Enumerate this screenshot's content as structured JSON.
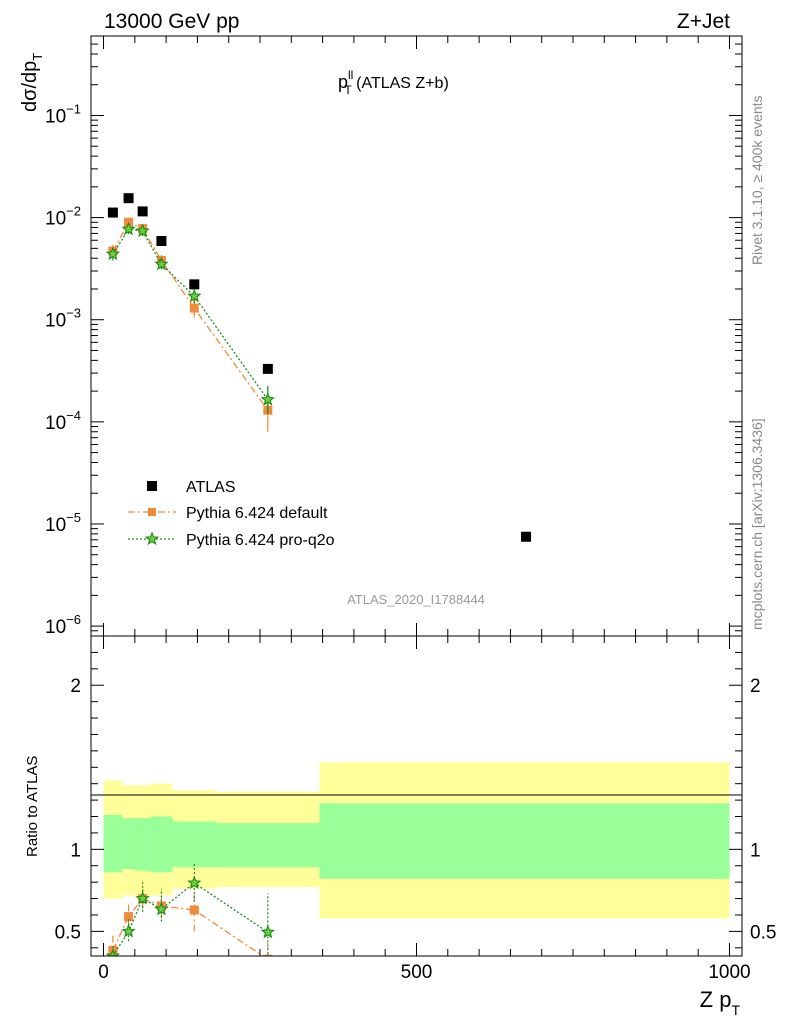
{
  "header": {
    "left": "13000 GeV pp",
    "right": "Z+Jet"
  },
  "plot_title": {
    "main": "p",
    "sup": "ll",
    "sub": "T",
    "rest": " (ATLAS Z+b)"
  },
  "side_labels": {
    "rivet": "Rivet 3.1.10, ≥ 400k events",
    "mcplots": "mcplots.cern.ch [arXiv:1306.3436]"
  },
  "reference_id": "ATLAS_2020_I1788444",
  "colors": {
    "atlas": "#000000",
    "default": "#f08a3c",
    "proq2o": "#1a8a1a",
    "band_inner": "#99ff99",
    "band_outer": "#ffff99"
  },
  "chart_data": [
    {
      "type": "scatter",
      "panel": "main",
      "ylabel": {
        "main": "dσ/dp",
        "sub": "T"
      },
      "yscale": "log",
      "xlim": [
        -20,
        1020
      ],
      "ylim": [
        8e-07,
        0.6
      ],
      "y_ticks": [
        {
          "value": 1e-06,
          "base": "10",
          "exp": "−6"
        },
        {
          "value": 1e-05,
          "base": "10",
          "exp": "−5"
        },
        {
          "value": 0.0001,
          "base": "10",
          "exp": "−4"
        },
        {
          "value": 0.001,
          "base": "10",
          "exp": "−3"
        },
        {
          "value": 0.01,
          "base": "10",
          "exp": "−2"
        },
        {
          "value": 0.1,
          "base": "10",
          "exp": "−1"
        }
      ],
      "legend_position": "lower-left",
      "series": [
        {
          "name": "ATLAS",
          "marker": "square",
          "points": [
            {
              "x": 15,
              "y": 0.0112
            },
            {
              "x": 40,
              "y": 0.0155
            },
            {
              "x": 62.5,
              "y": 0.0115
            },
            {
              "x": 92.5,
              "y": 0.0059
            },
            {
              "x": 145,
              "y": 0.00222
            },
            {
              "x": 262.5,
              "y": 0.00033
            },
            {
              "x": 675,
              "y": 7.5e-06
            }
          ]
        },
        {
          "name": "Pythia 6.424 default",
          "marker": "filled-square",
          "line": "dashdot",
          "points": [
            {
              "x": 15,
              "y": 0.0047,
              "lo": 0.004,
              "hi": 0.0054
            },
            {
              "x": 40,
              "y": 0.009,
              "lo": 0.008,
              "hi": 0.01
            },
            {
              "x": 62.5,
              "y": 0.0078,
              "lo": 0.007,
              "hi": 0.0086
            },
            {
              "x": 92.5,
              "y": 0.0038,
              "lo": 0.0033,
              "hi": 0.0043
            },
            {
              "x": 145,
              "y": 0.0013,
              "lo": 0.00105,
              "hi": 0.0016
            },
            {
              "x": 262.5,
              "y": 0.00013,
              "lo": 8e-05,
              "hi": 0.00019
            }
          ]
        },
        {
          "name": "Pythia 6.424 pro-q2o",
          "marker": "star",
          "line": "dotted",
          "points": [
            {
              "x": 15,
              "y": 0.0044,
              "lo": 0.0038,
              "hi": 0.0051
            },
            {
              "x": 40,
              "y": 0.0077,
              "lo": 0.0069,
              "hi": 0.0086
            },
            {
              "x": 62.5,
              "y": 0.0074,
              "lo": 0.0066,
              "hi": 0.0082
            },
            {
              "x": 92.5,
              "y": 0.0035,
              "lo": 0.0031,
              "hi": 0.004
            },
            {
              "x": 145,
              "y": 0.0017,
              "lo": 0.00145,
              "hi": 0.002
            },
            {
              "x": 262.5,
              "y": 0.000165,
              "lo": 0.00012,
              "hi": 0.000225
            }
          ]
        }
      ]
    },
    {
      "type": "scatter",
      "panel": "ratio",
      "xlabel": {
        "main": "Z p",
        "sub": "T"
      },
      "ylabel": "Ratio to ATLAS",
      "xlim": [
        -20,
        1020
      ],
      "ylim": [
        0.35,
        2.3
      ],
      "x_ticks": [
        0,
        500,
        1000
      ],
      "y_ticks": [
        0.5,
        1,
        2
      ],
      "reference_line": 1,
      "bands": [
        {
          "x0": 0,
          "x1": 30,
          "inner": [
            0.86,
            1.21
          ],
          "outer": [
            0.7,
            1.42
          ]
        },
        {
          "x0": 30,
          "x1": 50,
          "inner": [
            0.88,
            1.19
          ],
          "outer": [
            0.72,
            1.39
          ]
        },
        {
          "x0": 50,
          "x1": 75,
          "inner": [
            0.87,
            1.19
          ],
          "outer": [
            0.71,
            1.39
          ]
        },
        {
          "x0": 75,
          "x1": 110,
          "inner": [
            0.86,
            1.2
          ],
          "outer": [
            0.72,
            1.4
          ]
        },
        {
          "x0": 110,
          "x1": 180,
          "inner": [
            0.89,
            1.17
          ],
          "outer": [
            0.76,
            1.36
          ]
        },
        {
          "x0": 180,
          "x1": 345,
          "inner": [
            0.89,
            1.16
          ],
          "outer": [
            0.77,
            1.35
          ]
        },
        {
          "x0": 345,
          "x1": 1000,
          "inner": [
            0.82,
            1.28
          ],
          "outer": [
            0.58,
            1.53
          ]
        }
      ],
      "series": [
        {
          "name": "Pythia 6.424 default",
          "points": [
            {
              "x": 15,
              "y": 0.385,
              "lo": 0.34,
              "hi": 0.48
            },
            {
              "x": 40,
              "y": 0.59,
              "lo": 0.53,
              "hi": 0.68
            },
            {
              "x": 62.5,
              "y": 0.7,
              "lo": 0.64,
              "hi": 0.76
            },
            {
              "x": 92.5,
              "y": 0.655,
              "lo": 0.58,
              "hi": 0.74
            },
            {
              "x": 145,
              "y": 0.63,
              "lo": 0.5,
              "hi": 0.73
            },
            {
              "x": 262.5,
              "y": 0.33,
              "lo": 0.24,
              "hi": 0.43
            }
          ]
        },
        {
          "name": "Pythia 6.424 pro-q2o",
          "points": [
            {
              "x": 15,
              "y": 0.35,
              "lo": 0.3,
              "hi": 0.42
            },
            {
              "x": 40,
              "y": 0.5,
              "lo": 0.44,
              "hi": 0.58
            },
            {
              "x": 62.5,
              "y": 0.7,
              "lo": 0.62,
              "hi": 0.8
            },
            {
              "x": 92.5,
              "y": 0.635,
              "lo": 0.56,
              "hi": 0.76
            },
            {
              "x": 145,
              "y": 0.795,
              "lo": 0.68,
              "hi": 0.92
            },
            {
              "x": 262.5,
              "y": 0.495,
              "lo": 0.36,
              "hi": 0.73
            }
          ]
        }
      ]
    }
  ]
}
